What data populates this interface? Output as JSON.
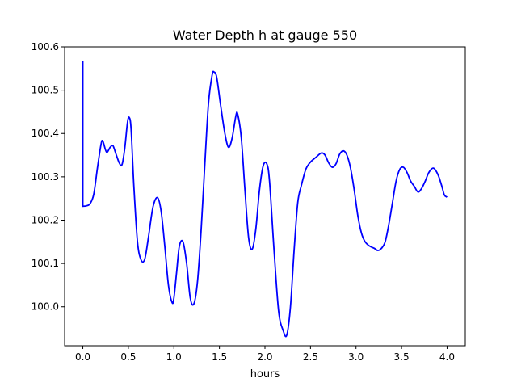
{
  "chart_data": {
    "type": "line",
    "title": "Water Depth h at gauge 550",
    "xlabel": "hours",
    "ylabel": "",
    "xlim": [
      -0.2,
      4.2
    ],
    "ylim": [
      99.91,
      100.6
    ],
    "grid": false,
    "x_ticks": [
      0.0,
      0.5,
      1.0,
      1.5,
      2.0,
      2.5,
      3.0,
      3.5,
      4.0
    ],
    "x_tick_labels": [
      "0.0",
      "0.5",
      "1.0",
      "1.5",
      "2.0",
      "2.5",
      "3.0",
      "3.5",
      "4.0"
    ],
    "y_ticks": [
      100.0,
      100.1,
      100.2,
      100.3,
      100.4,
      100.5,
      100.6
    ],
    "y_tick_labels": [
      "100.0",
      "100.1",
      "100.2",
      "100.3",
      "100.4",
      "100.5",
      "100.6"
    ],
    "series": [
      {
        "color": "#0000ff",
        "x": [
          0.0,
          0.0,
          0.002,
          0.04,
          0.08,
          0.12,
          0.16,
          0.2,
          0.22,
          0.26,
          0.3,
          0.33,
          0.36,
          0.4,
          0.43,
          0.46,
          0.49,
          0.51,
          0.53,
          0.56,
          0.6,
          0.64,
          0.68,
          0.72,
          0.77,
          0.82,
          0.86,
          0.9,
          0.94,
          0.98,
          1.0,
          1.03,
          1.06,
          1.1,
          1.14,
          1.18,
          1.22,
          1.26,
          1.3,
          1.34,
          1.38,
          1.42,
          1.44,
          1.47,
          1.51,
          1.56,
          1.6,
          1.64,
          1.68,
          1.7,
          1.74,
          1.78,
          1.82,
          1.86,
          1.9,
          1.94,
          1.98,
          2.02,
          2.05,
          2.1,
          2.15,
          2.2,
          2.24,
          2.28,
          2.32,
          2.36,
          2.4,
          2.45,
          2.5,
          2.56,
          2.62,
          2.66,
          2.7,
          2.74,
          2.78,
          2.82,
          2.86,
          2.9,
          2.94,
          2.98,
          3.02,
          3.06,
          3.1,
          3.15,
          3.2,
          3.24,
          3.28,
          3.32,
          3.36,
          3.4,
          3.44,
          3.48,
          3.52,
          3.56,
          3.6,
          3.64,
          3.68,
          3.72,
          3.76,
          3.8,
          3.85,
          3.9,
          3.94,
          3.97,
          4.0
        ],
        "y": [
          100.568,
          100.232,
          100.232,
          100.233,
          100.238,
          100.26,
          100.32,
          100.375,
          100.382,
          100.357,
          100.368,
          100.372,
          100.355,
          100.332,
          100.328,
          100.365,
          100.425,
          100.437,
          100.41,
          100.28,
          100.15,
          100.108,
          100.11,
          100.16,
          100.23,
          100.252,
          100.22,
          100.14,
          100.05,
          100.01,
          100.02,
          100.08,
          100.14,
          100.15,
          100.1,
          100.02,
          100.007,
          100.06,
          100.18,
          100.33,
          100.47,
          100.535,
          100.542,
          100.53,
          100.47,
          100.4,
          100.368,
          100.39,
          100.44,
          100.445,
          100.39,
          100.27,
          100.16,
          100.133,
          100.18,
          100.27,
          100.325,
          100.33,
          100.29,
          100.13,
          99.99,
          99.945,
          99.935,
          100.0,
          100.13,
          100.24,
          100.28,
          100.318,
          100.334,
          100.345,
          100.355,
          100.35,
          100.332,
          100.322,
          100.33,
          100.352,
          100.36,
          100.35,
          100.32,
          100.27,
          100.21,
          100.17,
          100.15,
          100.14,
          100.135,
          100.13,
          100.135,
          100.15,
          100.19,
          100.24,
          100.29,
          100.317,
          100.322,
          100.31,
          100.29,
          100.278,
          100.265,
          100.273,
          100.29,
          100.31,
          100.32,
          100.305,
          100.28,
          100.258,
          100.253
        ]
      }
    ]
  }
}
